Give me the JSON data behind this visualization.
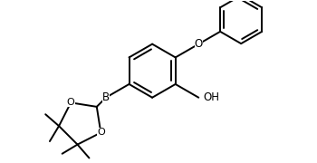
{
  "background_color": "#ffffff",
  "line_color": "#000000",
  "line_width": 1.4,
  "font_size": 8.5,
  "fig_width": 3.5,
  "fig_height": 1.8,
  "xlim": [
    0,
    3.5
  ],
  "ylim": [
    0,
    1.8
  ]
}
